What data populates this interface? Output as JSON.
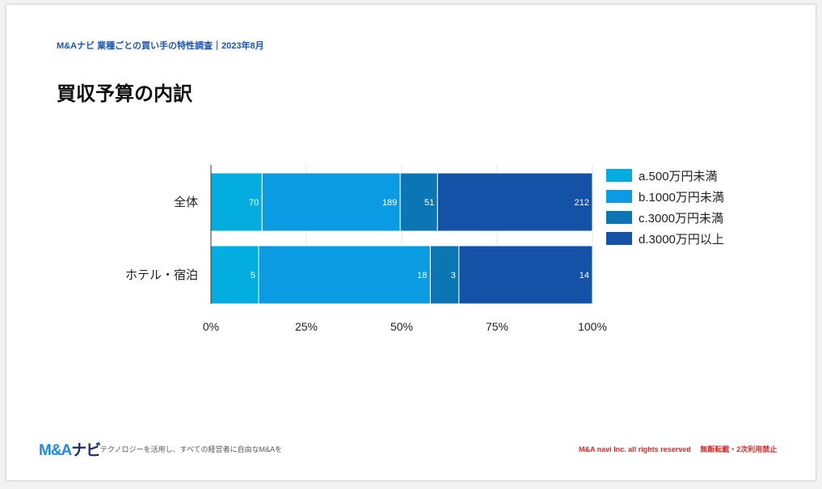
{
  "header": {
    "subtitle": "M&Aナビ 業種ごとの買い手の特性調査｜2023年8月",
    "title": "買収予算の内訳"
  },
  "chart_data": {
    "type": "bar",
    "stacked": true,
    "normalized": true,
    "orientation": "horizontal",
    "categories": [
      "全体",
      "ホテル・宿泊"
    ],
    "series": [
      {
        "name": "a.500万円未満",
        "values": [
          70,
          5
        ],
        "color": "#03ade0"
      },
      {
        "name": "b.1000万円未満",
        "values": [
          189,
          18
        ],
        "color": "#0a9be3"
      },
      {
        "name": "c.3000万円未満",
        "values": [
          51,
          3
        ],
        "color": "#0b76b3"
      },
      {
        "name": "d.3000万円以上",
        "values": [
          212,
          14
        ],
        "color": "#1452a8"
      }
    ],
    "xticks": [
      "0%",
      "25%",
      "50%",
      "75%",
      "100%"
    ],
    "xlim": [
      0,
      100
    ],
    "legend": "right"
  },
  "footer": {
    "logo_main": "M&A",
    "logo_sub": "ナビ",
    "tagline": "テクノロジーを活用し、すべての経営者に自由なM&Aを",
    "copyright": "M&A navi Inc. all rights reserved　 無断転載・2次利用禁止"
  }
}
